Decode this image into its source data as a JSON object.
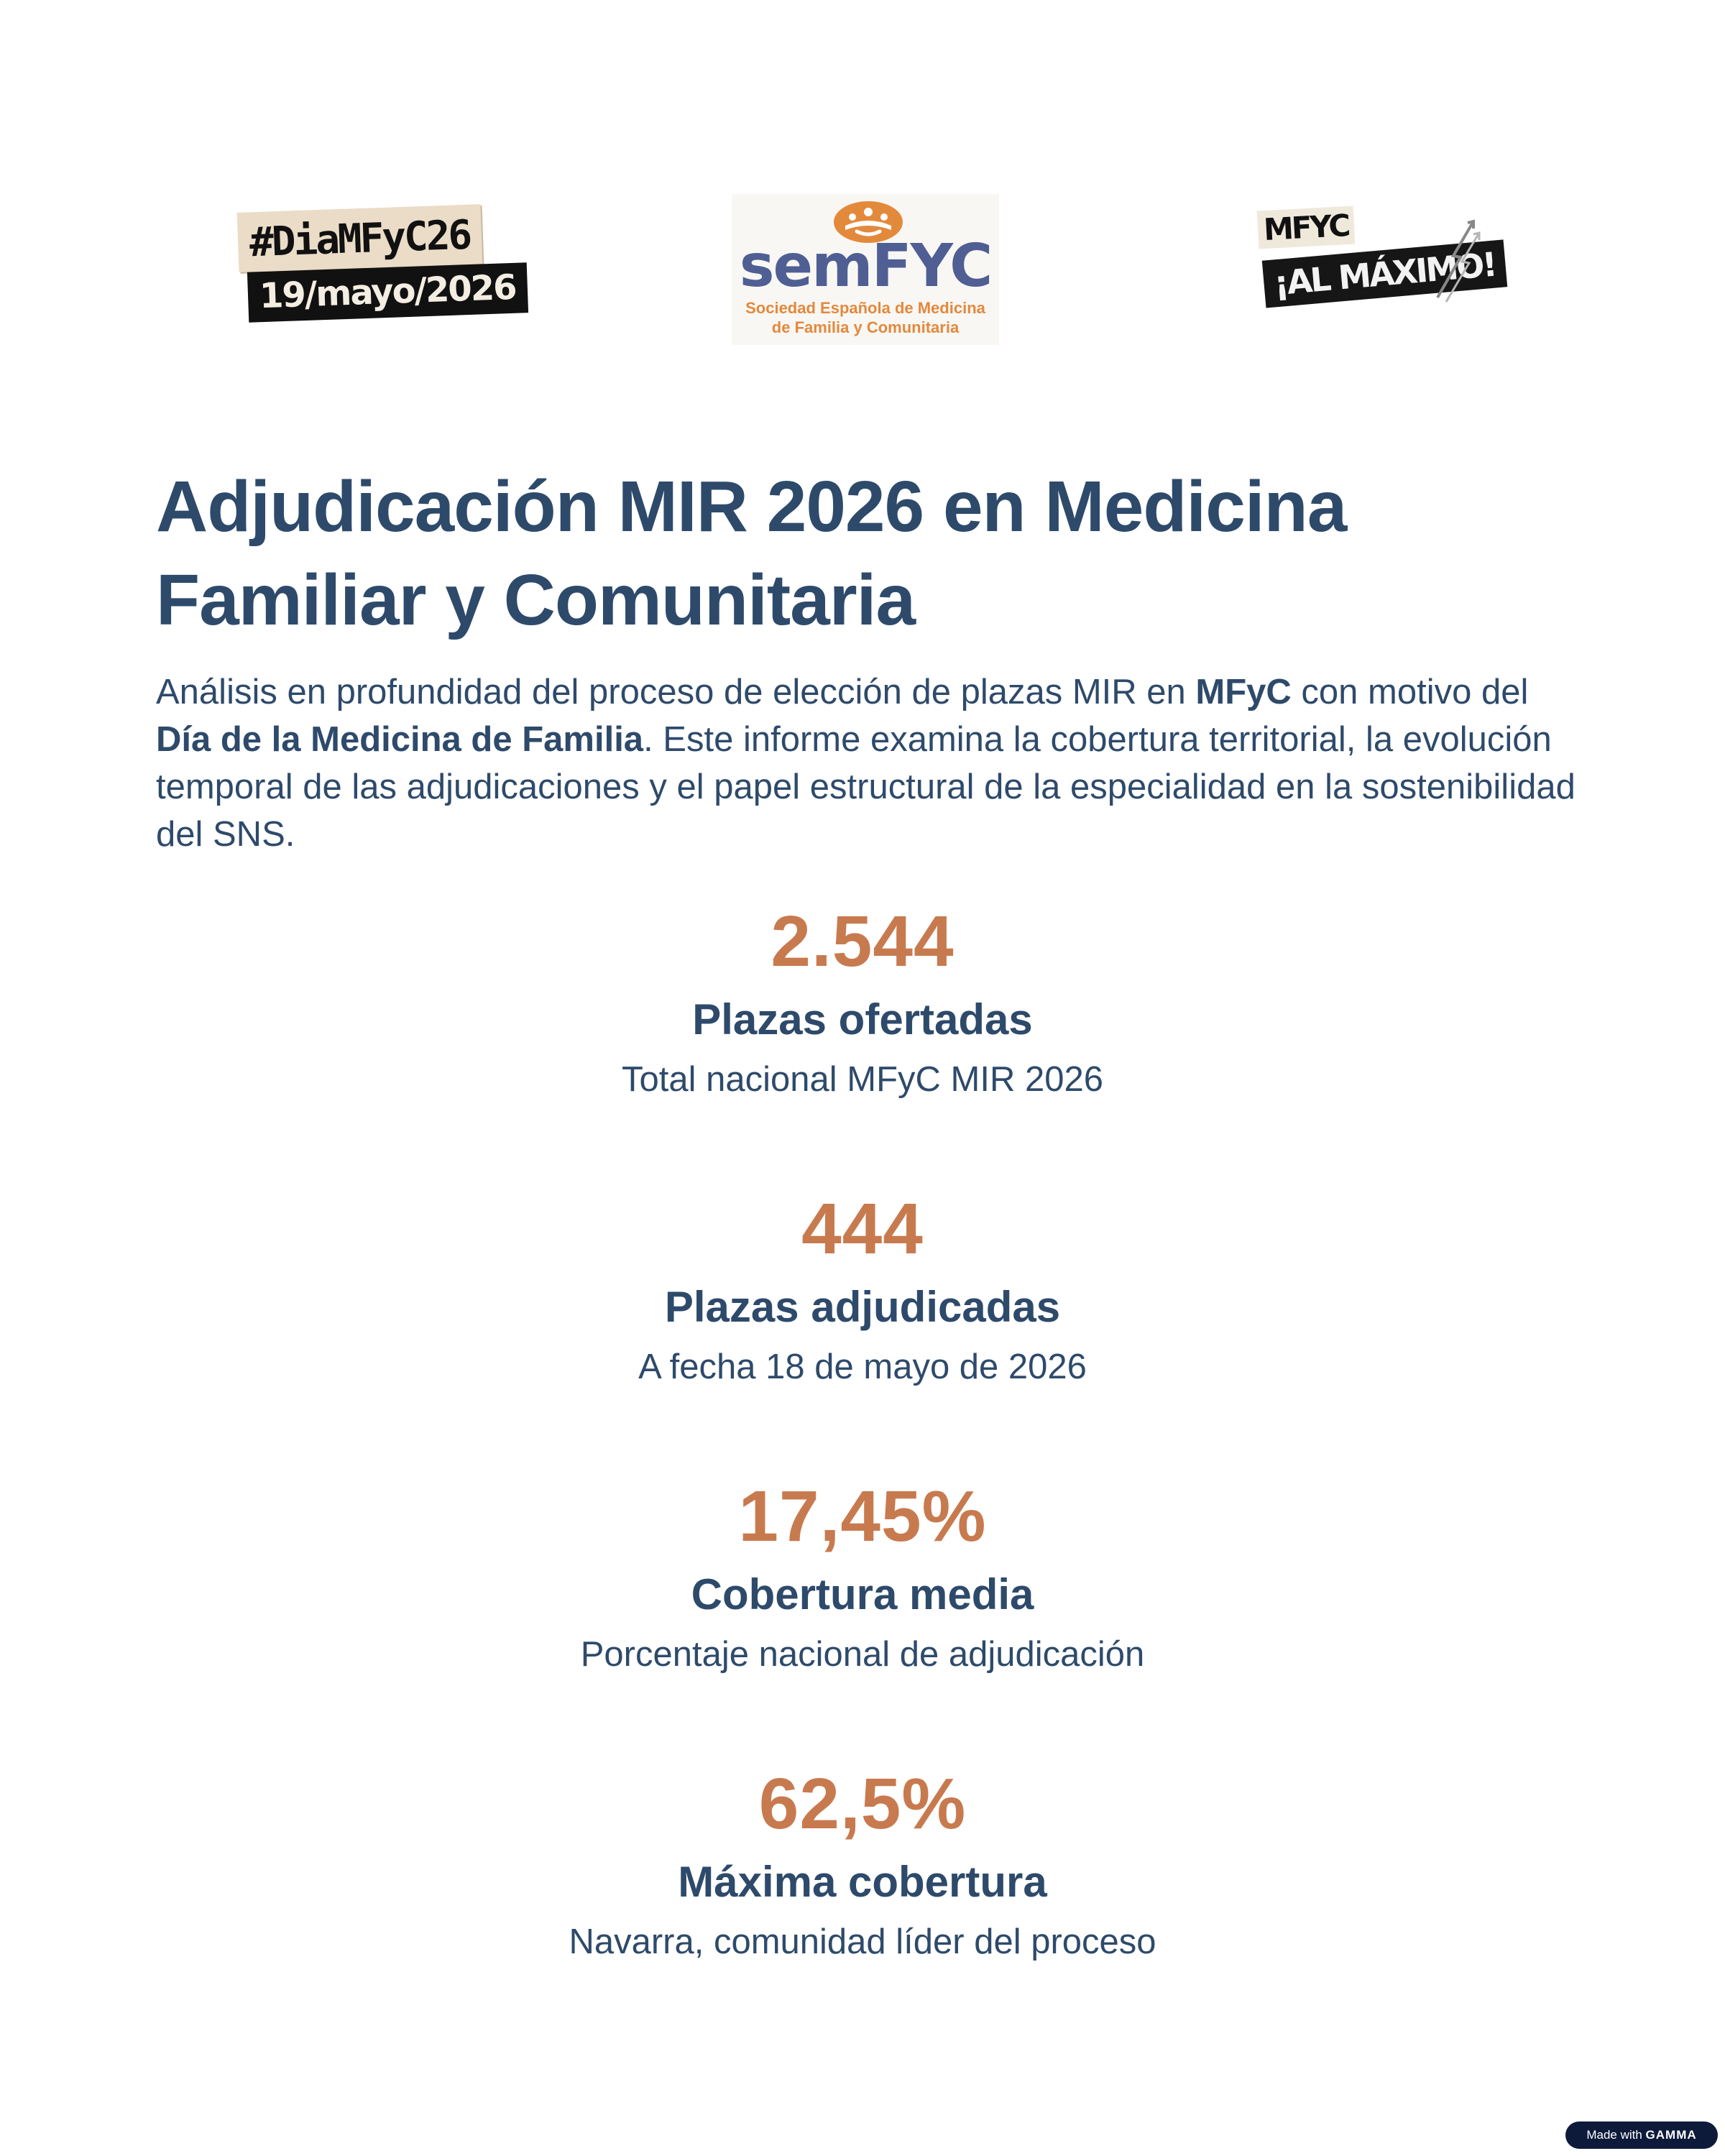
{
  "logos": {
    "hashtag": {
      "line1": "#DiaMFyC26",
      "line2": "19/mayo/2026"
    },
    "semfyc": {
      "wordmark": "semFYC",
      "subtitle_line1": "Sociedad Española de Medicina",
      "subtitle_line2": "de Familia y Comunitaria",
      "emblem_icon": "semfyc-family-emblem",
      "color_wordmark": "#4f5f93",
      "color_accent": "#e3893c"
    },
    "mfyc_maximo": {
      "line1": "MFYC",
      "line2": "¡AL MÁXIMO!"
    }
  },
  "title": "Adjudicación MIR 2026 en Medicina Familiar y Comunitaria",
  "intro": {
    "p1": "Análisis en profundidad del proceso de elección de plazas MIR en ",
    "b1": "MFyC",
    "p2": " con motivo del ",
    "b2": "Día de la Medicina de Familia",
    "p3": ". Este informe examina la cobertura territorial, la evolución temporal de las adjudicaciones y el papel estructural de la especialidad en la sostenibilidad del SNS."
  },
  "stats": [
    {
      "value": "2.544",
      "label": "Plazas ofertadas",
      "desc": "Total nacional MFyC MIR 2026"
    },
    {
      "value": "444",
      "label": "Plazas adjudicadas",
      "desc": "A fecha 18 de mayo de 2026"
    },
    {
      "value": "17,45%",
      "label": "Cobertura media",
      "desc": "Porcentaje nacional de adjudicación"
    },
    {
      "value": "62,5%",
      "label": "Máxima cobertura",
      "desc": "Navarra, comunidad líder del proceso"
    }
  ],
  "badge": {
    "prefix": "Made with",
    "brand": "GAMMA"
  },
  "colors": {
    "text": "#2e4a6b",
    "accent": "#c87a4f"
  }
}
